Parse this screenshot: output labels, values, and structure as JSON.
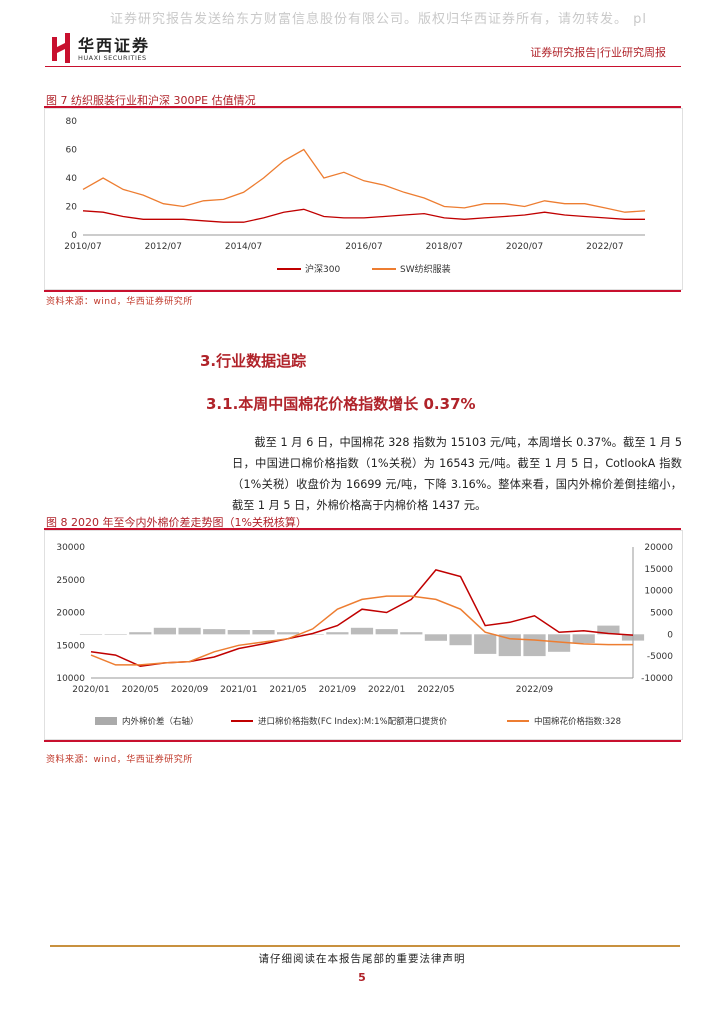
{
  "watermark": "证券研究报告发送给东方财富信息股份有限公司。版权归华西证券所有，请勿转发。 pl",
  "header": {
    "logo_cn": "华西证券",
    "logo_en": "HUAXI SECURITIES",
    "right": "证券研究报告|行业研究周报"
  },
  "fig7": {
    "title": "图 7  纺织服装行业和沪深 300PE 估值情况",
    "source": "资料来源：wind，华西证券研究所"
  },
  "section": {
    "h2": "3.行业数据追踪",
    "h3": "3.1.本周中国棉花价格指数增长 0.37%",
    "paragraph": "截至 1 月 6 日，中国棉花 328 指数为 15103 元/吨，本周增长 0.37%。截至 1 月 5 日，中国进口棉价格指数（1%关税）为 16543 元/吨。截至 1 月 5 日，CotlookA 指数（1%关税）收盘价为 16699 元/吨，下降 3.16%。整体来看，国内外棉价差倒挂缩小，截至 1 月 5 日，外棉价格高于内棉价格 1437 元。"
  },
  "fig8": {
    "title": "图 8  2020 年至今内外棉价差走势图（1%关税核算）",
    "source": "资料来源：wind，华西证券研究所"
  },
  "footer": {
    "notice": "请仔细阅读在本报告尾部的重要法律声明",
    "page": "5"
  },
  "chart_data": [
    {
      "type": "line",
      "title": "纺织服装行业和沪深 300PE 估值情况",
      "x": [
        "2010/07",
        "2011/01",
        "2011/07",
        "2012/01",
        "2012/07",
        "2013/01",
        "2013/07",
        "2014/01",
        "2014/07",
        "2015/01",
        "2015/04",
        "2015/06",
        "2015/09",
        "2016/01",
        "2016/07",
        "2017/01",
        "2017/07",
        "2018/01",
        "2018/07",
        "2019/01",
        "2019/07",
        "2020/01",
        "2020/07",
        "2021/01",
        "2021/07",
        "2022/01",
        "2022/07",
        "2022/10",
        "2023/01"
      ],
      "x_ticks": [
        "2010/07",
        "2012/07",
        "2014/07",
        "2016/07",
        "2018/07",
        "2020/07",
        "2022/07"
      ],
      "series": [
        {
          "name": "沪深300",
          "color": "#c00000",
          "values": [
            17,
            16,
            13,
            11,
            11,
            11,
            10,
            9,
            9,
            12,
            16,
            18,
            13,
            12,
            12,
            13,
            14,
            15,
            12,
            11,
            12,
            13,
            14,
            16,
            14,
            13,
            12,
            11,
            11
          ]
        },
        {
          "name": "SW纺织服装",
          "color": "#ed7d31",
          "values": [
            32,
            40,
            32,
            28,
            22,
            20,
            24,
            25,
            30,
            40,
            52,
            60,
            40,
            44,
            38,
            35,
            30,
            26,
            20,
            19,
            22,
            22,
            20,
            24,
            22,
            22,
            19,
            16,
            17
          ]
        }
      ],
      "ylim": [
        0,
        80
      ],
      "y_ticks": [
        0,
        20,
        40,
        60,
        80
      ],
      "legend": "bottom"
    },
    {
      "type": "line",
      "title": "2020 年至今内外棉价差走势图（1%关税核算）",
      "x": [
        "2020/01",
        "2020/03",
        "2020/05",
        "2020/07",
        "2020/09",
        "2020/11",
        "2021/01",
        "2021/03",
        "2021/05",
        "2021/07",
        "2021/09",
        "2021/11",
        "2022/01",
        "2022/03",
        "2022/05",
        "2022/06",
        "2022/07",
        "2022/08",
        "2022/09",
        "2022/10",
        "2022/11",
        "2022/12",
        "2023/01"
      ],
      "x_ticks": [
        "2020/01",
        "2020/05",
        "2020/09",
        "2021/01",
        "2021/05",
        "2021/09",
        "2022/01",
        "2022/05",
        "2022/09"
      ],
      "series": [
        {
          "name": "内外棉价差（右轴）",
          "color": "#aaaaaa",
          "axis": "right",
          "kind": "bar",
          "values": [
            0,
            0,
            500,
            1500,
            1500,
            1200,
            1000,
            1000,
            500,
            0,
            500,
            1500,
            1200,
            500,
            -1500,
            -2500,
            -4500,
            -5000,
            -5000,
            -4000,
            -2000,
            2000,
            -1437
          ]
        },
        {
          "name": "进口棉价格指数(FC Index):M:1%配额港口提货价",
          "color": "#c00000",
          "axis": "left",
          "kind": "line",
          "values": [
            14000,
            13500,
            11800,
            12300,
            12500,
            13200,
            14500,
            15200,
            16000,
            16800,
            18000,
            20500,
            20000,
            22000,
            26500,
            25500,
            18000,
            18500,
            19500,
            17000,
            17200,
            16800,
            16543
          ]
        },
        {
          "name": "中国棉花价格指数:328",
          "color": "#ed7d31",
          "axis": "left",
          "kind": "line",
          "values": [
            13500,
            12000,
            12000,
            12300,
            12500,
            14000,
            15000,
            15500,
            16000,
            17500,
            20500,
            22000,
            22500,
            22500,
            22000,
            20500,
            17000,
            16000,
            15800,
            15500,
            15200,
            15100,
            15103
          ]
        }
      ],
      "ylim": [
        10000,
        30000
      ],
      "y_ticks": [
        10000,
        15000,
        20000,
        25000,
        30000
      ],
      "y2lim": [
        -10000,
        20000
      ],
      "y2_ticks": [
        -10000,
        -5000,
        0,
        5000,
        10000,
        15000,
        20000
      ],
      "legend": "bottom"
    }
  ]
}
